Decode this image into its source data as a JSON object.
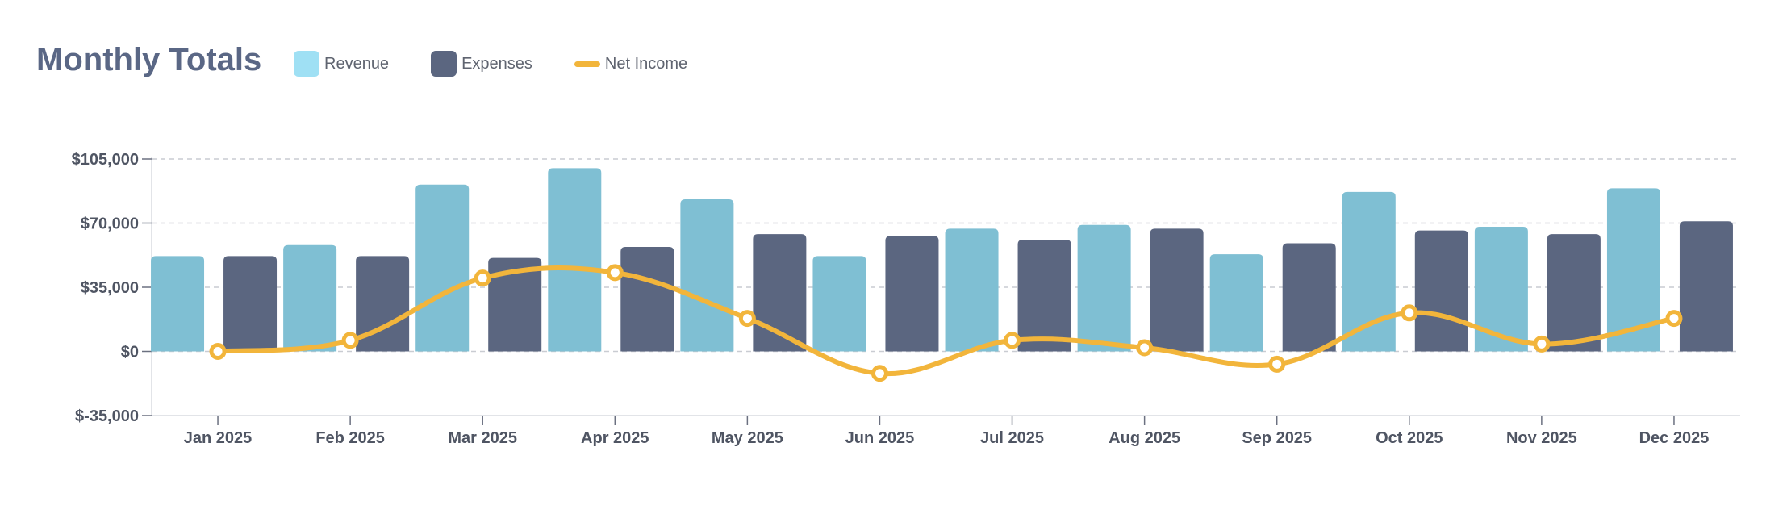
{
  "chart_data": {
    "type": "bar",
    "title": "Monthly Totals",
    "categories": [
      "Jan 2025",
      "Feb 2025",
      "Mar 2025",
      "Apr 2025",
      "May 2025",
      "Jun 2025",
      "Jul 2025",
      "Aug 2025",
      "Sep 2025",
      "Oct 2025",
      "Nov 2025",
      "Dec 2025"
    ],
    "series": [
      {
        "name": "Revenue",
        "kind": "bar",
        "color": "#7fbfd3",
        "legend_color": "#9fe0f4",
        "values": [
          52000,
          58000,
          91000,
          100000,
          83000,
          52000,
          67000,
          69000,
          53000,
          87000,
          68000,
          89000
        ]
      },
      {
        "name": "Expenses",
        "kind": "bar",
        "color": "#5b6680",
        "legend_color": "#5b6680",
        "values": [
          52000,
          52000,
          51000,
          57000,
          64000,
          63000,
          61000,
          67000,
          59000,
          66000,
          64000,
          71000
        ]
      },
      {
        "name": "Net Income",
        "kind": "line",
        "color": "#f2b53b",
        "legend_color": "#f2b53b",
        "values": [
          0,
          6000,
          40000,
          43000,
          18000,
          -12000,
          6000,
          2000,
          -7000,
          21000,
          4000,
          18000
        ]
      }
    ],
    "y_ticks": [
      "$105,000",
      "$70,000",
      "$35,000",
      "$0",
      "$-35,000"
    ],
    "y_tick_values": [
      105000,
      70000,
      35000,
      0,
      -35000
    ],
    "ylim": [
      -35000,
      105000
    ],
    "grid": true,
    "legend_position": "top-left"
  }
}
